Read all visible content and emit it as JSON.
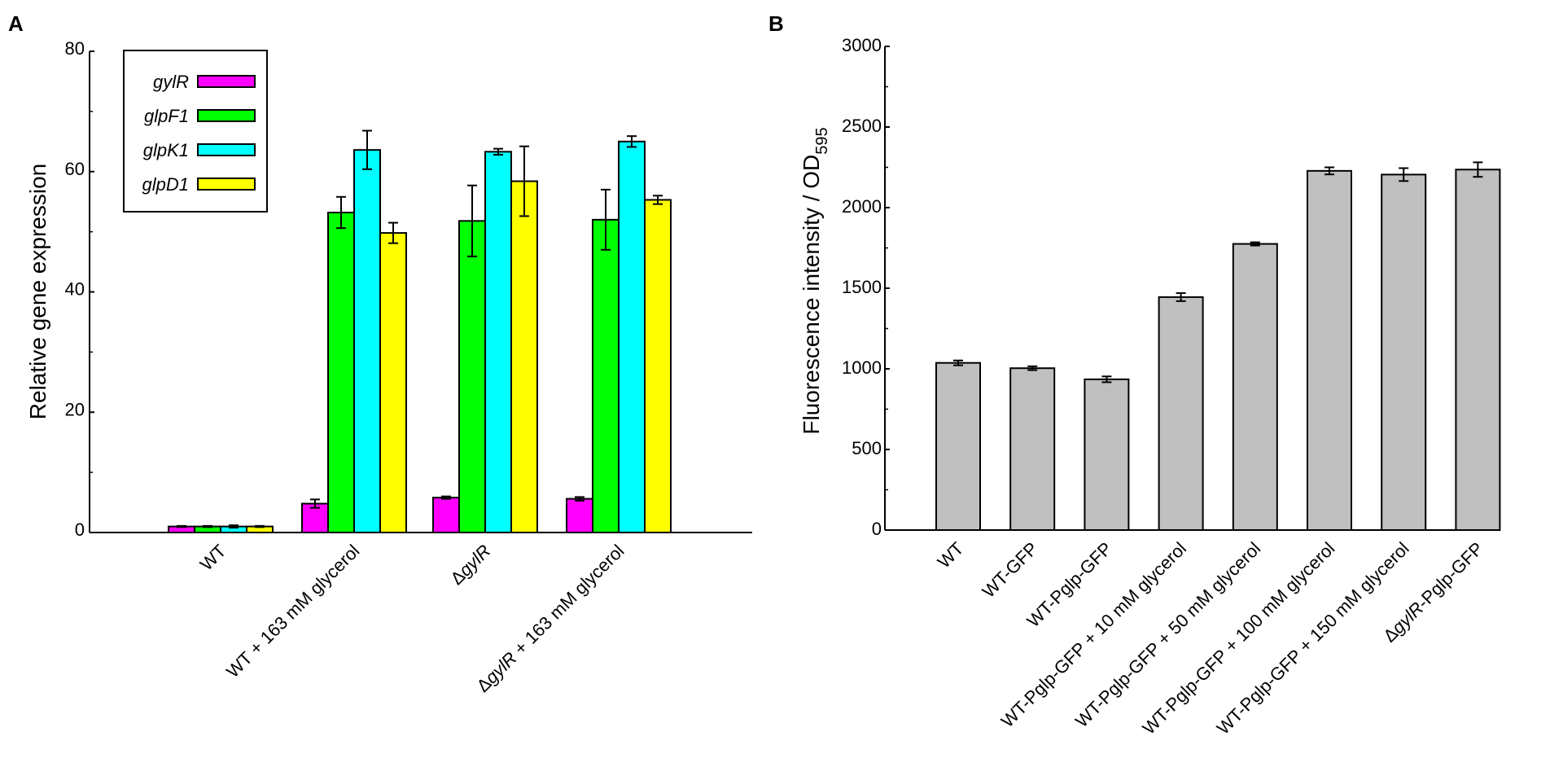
{
  "panels": {
    "a": {
      "label": "A"
    },
    "b": {
      "label": "B"
    }
  },
  "colors": {
    "glyR": "#ff00ff",
    "glpF1": "#00ff00",
    "glpK1": "#00ffff",
    "glpD1": "#ffff00",
    "gray": "#c0c0c0",
    "axis": "#000000"
  },
  "chart_data": [
    {
      "id": "A",
      "type": "bar",
      "title": "",
      "xlabel": "",
      "ylabel": "Relative gene expression",
      "ylim": [
        0,
        80
      ],
      "yticks": [
        0,
        20,
        40,
        60,
        80
      ],
      "legend_position": "top-left",
      "categories": [
        "WT",
        "WT + 163 mM glycerol",
        "ΔgylR",
        "ΔgylR + 163 mM glycerol"
      ],
      "series": [
        {
          "name": "gylR",
          "values": [
            1.0,
            4.8,
            5.8,
            5.6
          ],
          "errors": [
            0.1,
            0.7,
            0.2,
            0.3
          ]
        },
        {
          "name": "glpF1",
          "values": [
            1.0,
            53.2,
            51.8,
            52.0
          ],
          "errors": [
            0.1,
            2.6,
            5.9,
            5.0
          ]
        },
        {
          "name": "glpK1",
          "values": [
            1.0,
            63.6,
            63.3,
            65.0
          ],
          "errors": [
            0.2,
            3.2,
            0.5,
            0.9
          ]
        },
        {
          "name": "glpD1",
          "values": [
            1.0,
            49.8,
            58.4,
            55.3
          ],
          "errors": [
            0.1,
            1.7,
            5.8,
            0.7
          ]
        }
      ]
    },
    {
      "id": "B",
      "type": "bar",
      "title": "",
      "xlabel": "",
      "ylabel": "Fluorescence intensity / OD",
      "ylabel_sub": "595",
      "ylim": [
        0,
        3000
      ],
      "yticks": [
        0,
        500,
        1000,
        1500,
        2000,
        2500,
        3000
      ],
      "categories": [
        "WT",
        "WT-GFP",
        "WT-Pglp-GFP",
        "WT-Pglp-GFP + 10 mM glycerol",
        "WT-Pglp-GFP + 50 mM glycerol",
        "WT-Pglp-GFP + 100 mM glycerol",
        "WT-Pglp-GFP + 150 mM glycerol",
        "ΔgylR-Pglp-GFP"
      ],
      "series": [
        {
          "name": "Fluorescence",
          "values": [
            1037,
            1004,
            935,
            1445,
            1775,
            2228,
            2205,
            2236
          ],
          "errors": [
            15,
            12,
            18,
            25,
            10,
            22,
            40,
            45
          ]
        }
      ]
    }
  ]
}
